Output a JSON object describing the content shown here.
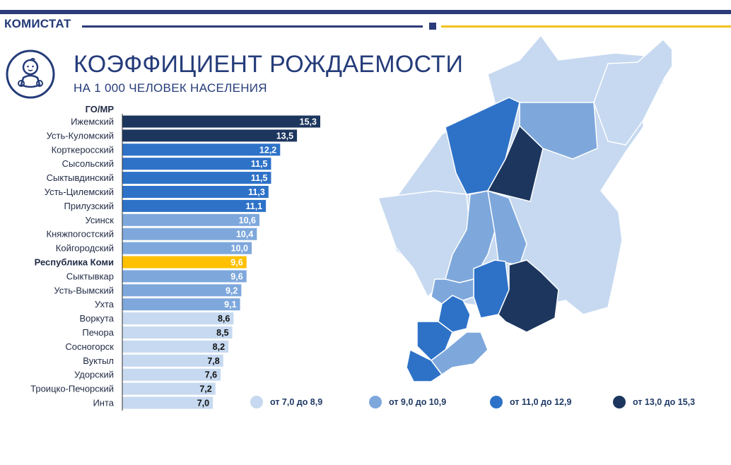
{
  "brand": "КОМИСТАТ",
  "title": "КОЭФФИЦИЕНТ РОЖДАЕМОСТИ",
  "subtitle": "НА 1 000 ЧЕЛОВЕК НАСЕЛЕНИЯ",
  "icon": "baby-icon",
  "colors": {
    "dark": "#1c365e",
    "medium": "#2e72c8",
    "light": "#7ea8dc",
    "pale": "#c6d9f0",
    "highlight": "#ffc000",
    "accent_blue": "#2b3b7a",
    "accent_gold": "#f0c21b"
  },
  "chart_data": {
    "type": "bar",
    "orientation": "horizontal",
    "header": "ГО/МР",
    "categories": [
      "Ижемский",
      "Усть-Куломский",
      "Корткеросский",
      "Сысольский",
      "Сыктывдинский",
      "Усть-Цилемский",
      "Прилузский",
      "Усинск",
      "Княжпогостский",
      "Койгородский",
      "Республика Коми",
      "Сыктывкар",
      "Усть-Вымский",
      "Ухта",
      "Воркута",
      "Печора",
      "Сосногорск",
      "Вуктыл",
      "Удорский",
      "Троицко-Печорский",
      "Инта"
    ],
    "values": [
      15.3,
      13.5,
      12.2,
      11.5,
      11.5,
      11.3,
      11.1,
      10.6,
      10.4,
      10.0,
      9.6,
      9.6,
      9.2,
      9.1,
      8.6,
      8.5,
      8.2,
      7.8,
      7.6,
      7.2,
      7.0
    ],
    "value_labels": [
      "15,3",
      "13,5",
      "12,2",
      "11,5",
      "11,5",
      "11,3",
      "11,1",
      "10,6",
      "10,4",
      "10,0",
      "9,6",
      "9,6",
      "9,2",
      "9,1",
      "8,6",
      "8,5",
      "8,2",
      "7,8",
      "7,6",
      "7,2",
      "7,0"
    ],
    "highlight": "Республика Коми",
    "xlim": [
      0,
      15.3
    ]
  },
  "legend": [
    {
      "label": "от 7,0 до 8,9",
      "color": "#c6d9f0"
    },
    {
      "label": "от 9,0 до 10,9",
      "color": "#7ea8dc"
    },
    {
      "label": "от 11,0 до 12,9",
      "color": "#2e72c8"
    },
    {
      "label": "от 13,0 до 15,3",
      "color": "#1c365e"
    }
  ]
}
